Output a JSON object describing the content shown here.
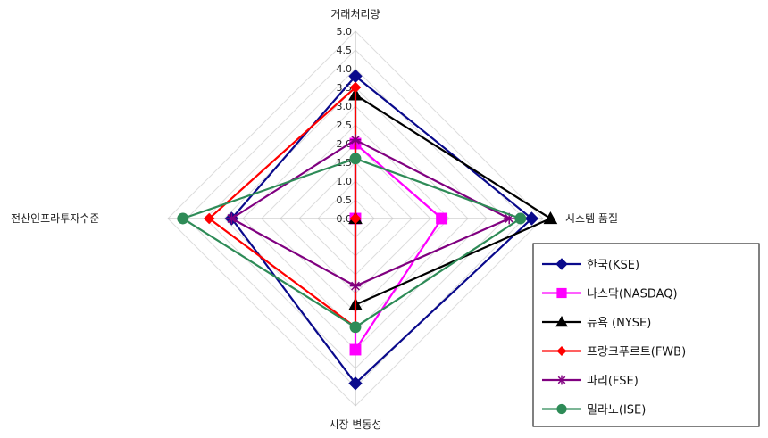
{
  "chart_data": {
    "type": "radar",
    "axes": [
      "거래처리량",
      "시스템 품질",
      "시장 변동성",
      "전산인프라투자수준"
    ],
    "rlim": [
      0,
      5.0
    ],
    "ticks": [
      "0.0",
      "0.5",
      "1.0",
      "1.5",
      "2.0",
      "2.5",
      "3.0",
      "3.5",
      "4.0",
      "4.5",
      "5.0"
    ],
    "grid": true,
    "legend": "bottom-right",
    "series": [
      {
        "name": "한국(KSE)",
        "values": [
          3.8,
          4.7,
          4.4,
          3.3
        ],
        "color": "#0a0a8c",
        "marker": "diamond"
      },
      {
        "name": "나스닥(NASDAQ)",
        "values": [
          2.0,
          2.3,
          3.5,
          0.0
        ],
        "color": "#ff00ff",
        "marker": "square"
      },
      {
        "name": "뉴욕    (NYSE)",
        "values": [
          3.3,
          5.2,
          2.3,
          0.0
        ],
        "color": "#000000",
        "marker": "triangle"
      },
      {
        "name": "프랑크푸르트(FWB)",
        "values": [
          3.5,
          0.0,
          2.9,
          3.9
        ],
        "color": "#ff0000",
        "marker": "diamond-small"
      },
      {
        "name": "파리(FSE)",
        "values": [
          2.1,
          4.1,
          1.8,
          3.3
        ],
        "color": "#800080",
        "marker": "star"
      },
      {
        "name": "밀라노(ISE)",
        "values": [
          1.6,
          4.4,
          2.9,
          4.6
        ],
        "color": "#2e8b57",
        "marker": "circle"
      }
    ]
  }
}
